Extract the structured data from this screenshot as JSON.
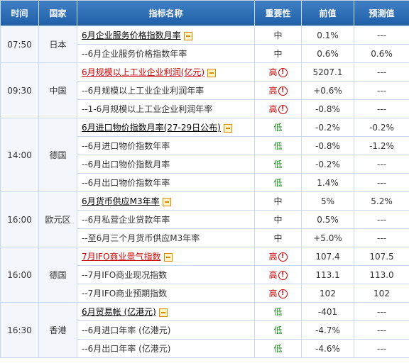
{
  "headers": [
    "时间",
    "国家",
    "指标名称",
    "重要性",
    "前值",
    "预测值"
  ],
  "groups": [
    {
      "time": "07:50",
      "country": "日本",
      "rows": [
        {
          "name": "6月企业服务价格指数月率",
          "main": true,
          "red": false,
          "importance": "中",
          "level": "mid",
          "prev": "0.1%",
          "forecast": "---"
        },
        {
          "name": "--6月企业服务价格指数年率",
          "main": false,
          "red": false,
          "importance": "中",
          "level": "mid",
          "prev": "0.6%",
          "forecast": "0.6%"
        }
      ]
    },
    {
      "time": "09:30",
      "country": "中国",
      "rows": [
        {
          "name": "6月规模以上工业企业利润(亿元)",
          "main": true,
          "red": true,
          "importance": "高",
          "level": "high",
          "prev": "5207.1",
          "forecast": "---"
        },
        {
          "name": "--6月规模以上工业企业利润年率",
          "main": false,
          "red": false,
          "importance": "高",
          "level": "high",
          "prev": "+0.6%",
          "forecast": "---"
        },
        {
          "name": "--1-6月规模以上工业企业利润年率",
          "main": false,
          "red": false,
          "importance": "高",
          "level": "high",
          "prev": "-0.8%",
          "forecast": "---"
        }
      ]
    },
    {
      "time": "14:00",
      "country": "德国",
      "rows": [
        {
          "name": "6月进口物价指数月率(27-29日公布)",
          "main": true,
          "red": false,
          "importance": "低",
          "level": "low",
          "prev": "-0.2%",
          "forecast": "-0.2%"
        },
        {
          "name": "--6月进口物价指数年率",
          "main": false,
          "red": false,
          "importance": "低",
          "level": "low",
          "prev": "-0.8%",
          "forecast": "-1.2%"
        },
        {
          "name": "--6月出口物价指数月率",
          "main": false,
          "red": false,
          "importance": "低",
          "level": "low",
          "prev": "-0.2%",
          "forecast": "---"
        },
        {
          "name": "--6月出口物价指数年率",
          "main": false,
          "red": false,
          "importance": "低",
          "level": "low",
          "prev": "1.4%",
          "forecast": "---"
        }
      ]
    },
    {
      "time": "16:00",
      "country": "欧元区",
      "rows": [
        {
          "name": "6月货币供应M3年率",
          "main": true,
          "red": false,
          "importance": "中",
          "level": "mid",
          "prev": "5%",
          "forecast": "5.2%"
        },
        {
          "name": "--6月私营企业贷款年率",
          "main": false,
          "red": false,
          "importance": "中",
          "level": "mid",
          "prev": "0.5%",
          "forecast": "---"
        },
        {
          "name": "--至6月三个月货币供应M3年率",
          "main": false,
          "red": false,
          "importance": "中",
          "level": "mid",
          "prev": "+5.0%",
          "forecast": "---"
        }
      ]
    },
    {
      "time": "16:00",
      "country": "德国",
      "rows": [
        {
          "name": "7月IFO商业景气指数",
          "main": true,
          "red": true,
          "importance": "高",
          "level": "high",
          "prev": "107.4",
          "forecast": "107.5"
        },
        {
          "name": "--7月IFO商业现况指数",
          "main": false,
          "red": false,
          "importance": "高",
          "level": "high",
          "prev": "113.1",
          "forecast": "113.0"
        },
        {
          "name": "--7月IFO商业预期指数",
          "main": false,
          "red": false,
          "importance": "高",
          "level": "high",
          "prev": "102",
          "forecast": "102"
        }
      ]
    },
    {
      "time": "16:30",
      "country": "香港",
      "rows": [
        {
          "name": "6月贸易帐 (亿港元)",
          "main": true,
          "red": false,
          "importance": "低",
          "level": "low",
          "prev": "-401",
          "forecast": "---"
        },
        {
          "name": "--6月进口年率 (亿港元)",
          "main": false,
          "red": false,
          "importance": "低",
          "level": "low",
          "prev": "-4.7%",
          "forecast": "---"
        },
        {
          "name": "--6月出口年率 (亿港元)",
          "main": false,
          "red": false,
          "importance": "低",
          "level": "low",
          "prev": "-4.6%",
          "forecast": "---"
        }
      ]
    }
  ]
}
